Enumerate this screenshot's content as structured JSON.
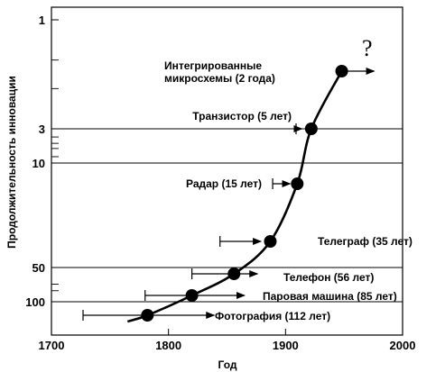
{
  "chart_data": {
    "type": "scatter",
    "xlabel": "Год",
    "ylabel": "Продолжительность инновации",
    "xlim": [
      1700,
      2000
    ],
    "x_ticks": [
      "1700",
      "1800",
      "1900",
      "2000"
    ],
    "y_ticks": [
      "1",
      "3",
      "10",
      "50",
      "100"
    ],
    "y_ticks_values": [
      1,
      3,
      10,
      50,
      100
    ],
    "y_scale": "log",
    "annotation": "?",
    "series": [
      {
        "values": [
          {
            "label": "Фотография (112 лет)",
            "start": 1727,
            "end": 1839,
            "x": 1782
          },
          {
            "label": "Паровая машина (85 лет)",
            "start": 1780,
            "end": 1865,
            "x": 1820
          },
          {
            "label": "Телефон (56 лет)",
            "start": 1820,
            "end": 1876,
            "x": 1856
          },
          {
            "label": "Телеграф (35 лет)",
            "start": 1844,
            "end": 1879,
            "x": 1887
          },
          {
            "label": "Радар (15 лет)",
            "start": 1889,
            "end": 1904,
            "x": 1910
          },
          {
            "label": "Транзистор (5 лет)",
            "start": 1909,
            "end": 1914,
            "x": 1922
          },
          {
            "label": "Интегрированные микросхемы (2 года)",
            "start": 1948,
            "end": 1950,
            "x": 1948
          }
        ]
      }
    ]
  }
}
